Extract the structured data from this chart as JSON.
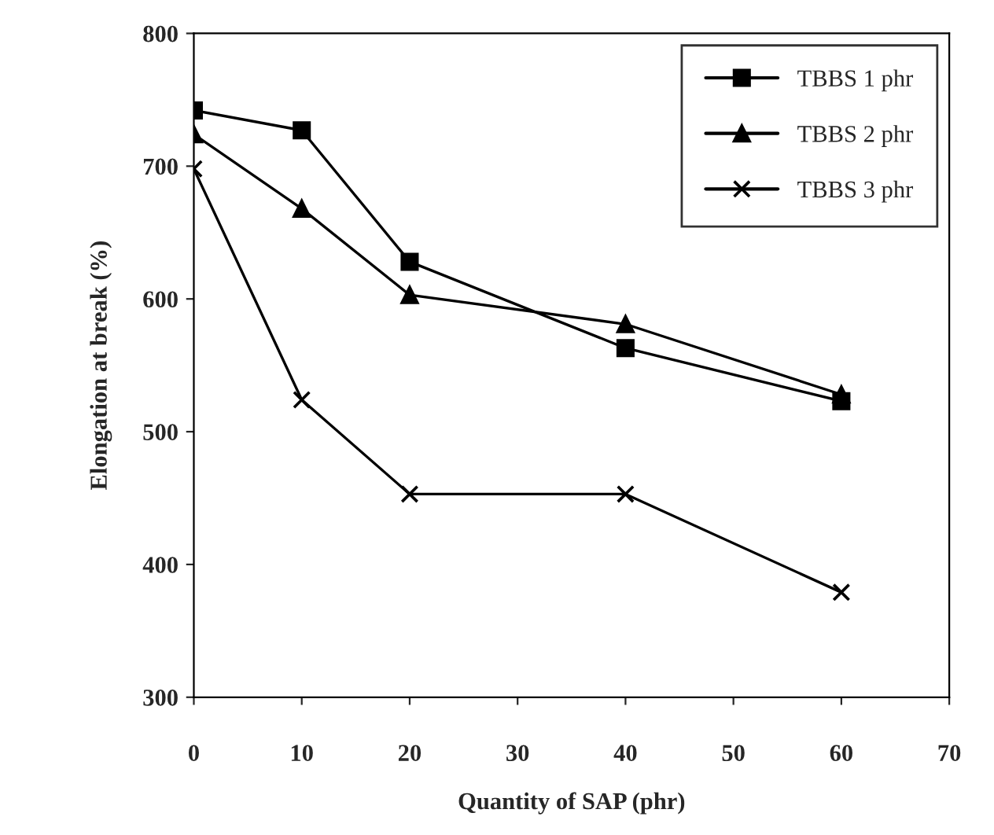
{
  "chart_data": {
    "type": "line",
    "xlabel": "Quantity of SAP (phr)",
    "ylabel": "Elongation at break (%)",
    "x": [
      0,
      10,
      20,
      40,
      60
    ],
    "series": [
      {
        "name": "TBBS 1 phr",
        "color": "#000000",
        "marker": "square",
        "values": [
          742,
          727,
          628,
          563,
          523
        ]
      },
      {
        "name": "TBBS 2 phr",
        "color": "#000000",
        "marker": "triangle",
        "values": [
          724,
          668,
          603,
          581,
          528
        ]
      },
      {
        "name": "TBBS 3 phr",
        "color": "#000000",
        "marker": "cross",
        "values": [
          698,
          524,
          453,
          453,
          379
        ]
      }
    ],
    "xlim": [
      0,
      70
    ],
    "xticks": [
      0,
      10,
      20,
      30,
      40,
      50,
      60,
      70
    ],
    "ylim": [
      300,
      800
    ],
    "yticks": [
      300,
      400,
      500,
      600,
      700,
      800
    ],
    "grid": false,
    "legend": "top right",
    "line_style": "solid"
  }
}
